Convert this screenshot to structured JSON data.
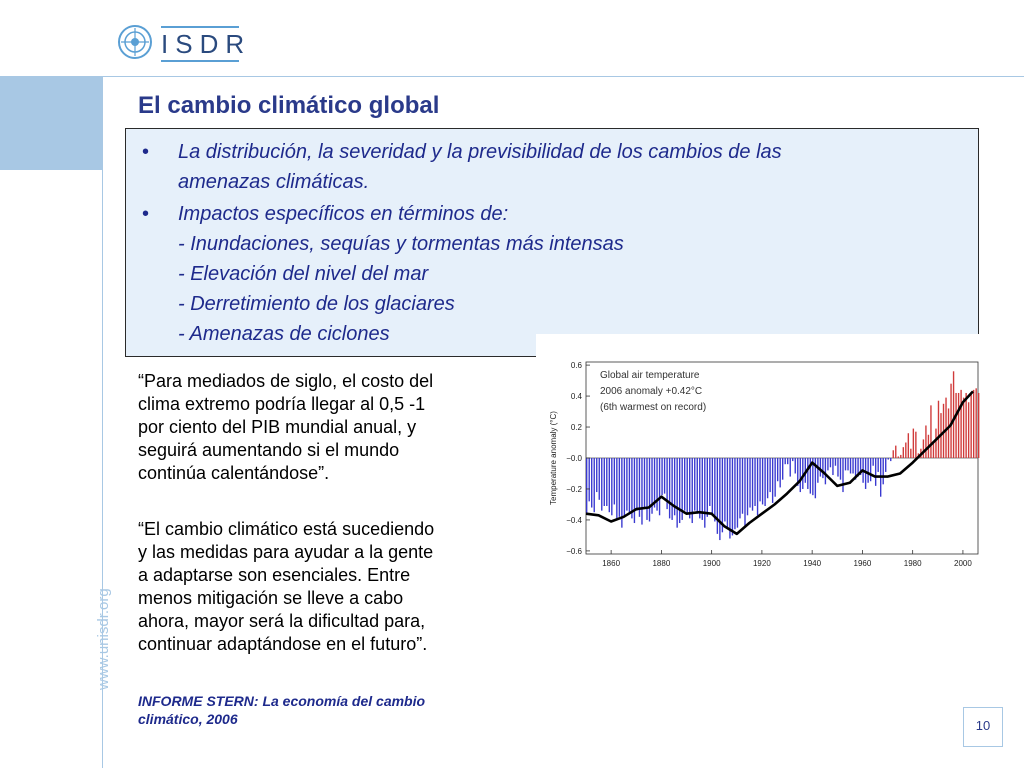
{
  "header": {
    "logo_text": "ISDR",
    "side_url": "www.unisdr.org"
  },
  "slide": {
    "title": "El cambio climático global",
    "bullets": [
      {
        "lines": [
          "La distribución, la severidad y la previsibilidad de los cambios de las",
          "amenazas climáticas."
        ]
      },
      {
        "lines": [
          "Impactos específicos en términos de:",
          "- Inundaciones, sequías y tormentas más intensas",
          "- Elevación del nivel del mar",
          "- Derretimiento de los glaciares",
          "- Amenazas de ciclones"
        ]
      }
    ],
    "bullet_symbol": "•",
    "quote1": [
      "“Para mediados de siglo, el costo del",
      "clima extremo podría llegar al 0,5 -1",
      "por ciento del PIB mundial anual, y",
      "seguirá aumentando si el mundo",
      "continúa calentándose”."
    ],
    "quote2": [
      "“El cambio climático está sucediendo",
      "y las medidas para ayudar a la gente",
      "a adaptarse son esenciales. Entre",
      "menos mitigación se lleve a cabo",
      "ahora, mayor será la dificultad para,",
      "continuar adaptándose en el futuro”."
    ],
    "source": [
      "INFORME STERN: La economía del cambio",
      "climático, 2006"
    ],
    "page_number": "10"
  },
  "chart_data": {
    "type": "bar",
    "annotation": [
      "Global air temperature",
      "2006 anomaly +0.42°C",
      "(6th warmest on record)"
    ],
    "ylabel": "Temperature anomaly (°C)",
    "xlim": [
      1850,
      2006
    ],
    "ylim": [
      -0.62,
      0.62
    ],
    "y_ticks": [
      0.6,
      0.4,
      0.2,
      0.0,
      -0.2,
      -0.4,
      -0.6
    ],
    "y_tick_labels": [
      "0.6",
      "0.4",
      "0.2",
      "−0.0",
      "−0.2",
      "−0.4",
      "−0.6"
    ],
    "x_ticks": [
      1860,
      1880,
      1900,
      1920,
      1940,
      1960,
      1980,
      2000
    ],
    "colors": {
      "negative": "#3a3ad0",
      "positive": "#d03a3a",
      "smooth": "#000000"
    },
    "smooth": {
      "name": "",
      "x": [
        1850,
        1855,
        1860,
        1865,
        1870,
        1875,
        1880,
        1885,
        1890,
        1895,
        1900,
        1905,
        1910,
        1915,
        1920,
        1925,
        1930,
        1935,
        1940,
        1945,
        1950,
        1955,
        1960,
        1965,
        1970,
        1975,
        1980,
        1985,
        1990,
        1995,
        2000,
        2004
      ],
      "y": [
        -0.36,
        -0.37,
        -0.41,
        -0.38,
        -0.33,
        -0.32,
        -0.25,
        -0.31,
        -0.36,
        -0.35,
        -0.36,
        -0.44,
        -0.49,
        -0.42,
        -0.36,
        -0.3,
        -0.23,
        -0.15,
        -0.03,
        -0.1,
        -0.18,
        -0.16,
        -0.08,
        -0.12,
        -0.12,
        -0.1,
        -0.03,
        0.05,
        0.13,
        0.21,
        0.36,
        0.43
      ]
    },
    "bars": [
      -0.36,
      -0.28,
      -0.32,
      -0.35,
      -0.22,
      -0.27,
      -0.34,
      -0.31,
      -0.31,
      -0.35,
      -0.37,
      -0.3,
      -0.39,
      -0.38,
      -0.45,
      -0.38,
      -0.34,
      -0.35,
      -0.39,
      -0.42,
      -0.34,
      -0.38,
      -0.43,
      -0.33,
      -0.4,
      -0.41,
      -0.36,
      -0.32,
      -0.34,
      -0.37,
      -0.24,
      -0.23,
      -0.33,
      -0.39,
      -0.4,
      -0.37,
      -0.45,
      -0.42,
      -0.4,
      -0.34,
      -0.36,
      -0.39,
      -0.42,
      -0.34,
      -0.36,
      -0.39,
      -0.4,
      -0.45,
      -0.38,
      -0.31,
      -0.36,
      -0.41,
      -0.49,
      -0.53,
      -0.48,
      -0.41,
      -0.45,
      -0.52,
      -0.5,
      -0.46,
      -0.45,
      -0.39,
      -0.36,
      -0.45,
      -0.37,
      -0.32,
      -0.34,
      -0.31,
      -0.37,
      -0.28,
      -0.3,
      -0.31,
      -0.26,
      -0.22,
      -0.29,
      -0.25,
      -0.15,
      -0.19,
      -0.14,
      -0.04,
      -0.04,
      -0.12,
      -0.02,
      -0.1,
      -0.18,
      -0.22,
      -0.2,
      -0.16,
      -0.2,
      -0.23,
      -0.24,
      -0.26,
      -0.16,
      -0.12,
      -0.13,
      -0.17,
      -0.08,
      -0.06,
      -0.11,
      -0.05,
      -0.12,
      -0.14,
      -0.22,
      -0.08,
      -0.08,
      -0.1,
      -0.1,
      -0.14,
      -0.12,
      -0.11,
      -0.16,
      -0.2,
      -0.16,
      -0.15,
      -0.05,
      -0.18,
      -0.09,
      -0.25,
      -0.17,
      -0.09,
      -0.01,
      -0.02,
      0.05,
      0.08,
      0.01,
      0.02,
      0.07,
      0.1,
      0.16,
      0.06,
      0.19,
      0.17,
      0.03,
      0.06,
      0.12,
      0.21,
      0.15,
      0.34,
      0.11,
      0.19,
      0.37,
      0.29,
      0.35,
      0.39,
      0.32,
      0.48,
      0.56,
      0.42,
      0.42,
      0.44,
      0.39,
      0.42,
      0.36,
      0.42,
      0.44,
      0.45,
      0.42
    ]
  }
}
